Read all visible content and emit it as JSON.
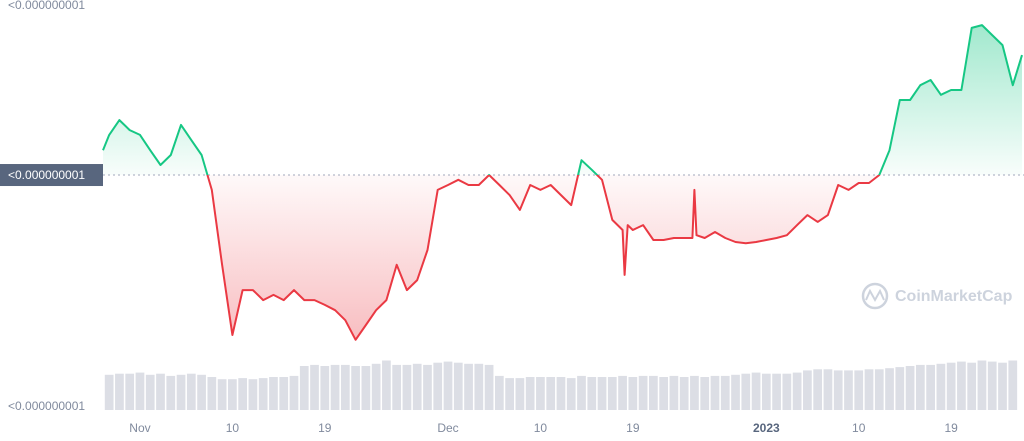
{
  "chart_data": {
    "type": "line",
    "x": [
      -3.6,
      -3,
      -2,
      -1,
      0,
      1,
      2,
      3,
      4,
      5,
      6,
      7,
      8,
      9,
      10,
      11,
      12,
      13,
      14,
      15,
      16,
      17,
      18,
      19,
      20,
      21,
      22,
      23,
      24,
      25,
      26,
      27,
      28,
      29,
      30,
      31,
      32,
      33,
      34,
      35,
      36,
      37,
      38,
      39,
      40,
      41,
      42,
      43,
      44,
      45,
      46,
      47,
      47.2,
      47.5,
      48,
      49,
      50,
      51,
      52,
      53,
      53.8,
      54,
      54.2,
      55,
      56,
      57,
      58,
      59,
      60,
      61,
      62,
      63,
      64,
      65,
      66,
      67,
      68,
      69,
      70,
      71,
      72,
      73,
      74,
      75,
      76,
      77,
      78,
      79,
      80,
      81,
      82,
      83,
      84,
      85,
      85.9
    ],
    "values": [
      63.8,
      67.6,
      71.3,
      68.8,
      67.6,
      63.8,
      60.1,
      62.6,
      70.1,
      66.3,
      62.6,
      53.9,
      35.2,
      17.7,
      28.9,
      28.9,
      26.4,
      27.7,
      26.4,
      28.9,
      26.4,
      26.4,
      25.2,
      23.9,
      21.4,
      16.5,
      20.2,
      23.9,
      26.4,
      35.2,
      28.9,
      31.4,
      38.9,
      53.9,
      55.1,
      56.4,
      55.1,
      55.1,
      57.6,
      55.1,
      52.6,
      48.9,
      55.1,
      53.9,
      55.1,
      52.6,
      50.1,
      61.3,
      58.9,
      56.4,
      46.4,
      43.9,
      32.7,
      45.1,
      43.9,
      45.1,
      41.4,
      41.4,
      41.9,
      41.9,
      41.9,
      53.9,
      42.6,
      41.9,
      43.4,
      41.9,
      40.9,
      40.6,
      40.9,
      41.4,
      41.9,
      42.6,
      45.1,
      47.6,
      45.9,
      47.6,
      55.1,
      53.9,
      55.6,
      55.6,
      57.6,
      63.8,
      76.3,
      76.3,
      80.0,
      81.3,
      77.6,
      78.8,
      78.8,
      94.3,
      95.0,
      92.5,
      90.0,
      80.0,
      87.5
    ],
    "xlim": [
      -3.6,
      85.9
    ],
    "xticks": [
      {
        "value": 0,
        "label": "Nov"
      },
      {
        "value": 9,
        "label": "10"
      },
      {
        "value": 18,
        "label": "19"
      },
      {
        "value": 30,
        "label": "Dec"
      },
      {
        "value": 39,
        "label": "10"
      },
      {
        "value": 48,
        "label": "19"
      },
      {
        "value": 61,
        "label": "2023"
      },
      {
        "value": 70,
        "label": "10"
      },
      {
        "value": 79,
        "label": "19"
      }
    ],
    "ylim": [
      0,
      100
    ],
    "yticks": [
      {
        "value": 100,
        "label": "<0.000000001"
      },
      {
        "value": 57.6,
        "label": "<0.000000001"
      },
      {
        "value": 0,
        "label": "<0.000000001"
      }
    ],
    "baseline": 57.6,
    "up_color": "#16c784",
    "down_color": "#ea3943",
    "volume": {
      "x": [
        -3,
        -2,
        -1,
        0,
        1,
        2,
        3,
        4,
        5,
        6,
        7,
        8,
        9,
        10,
        11,
        12,
        13,
        14,
        15,
        16,
        17,
        18,
        19,
        20,
        21,
        22,
        23,
        24,
        25,
        26,
        27,
        28,
        29,
        30,
        31,
        32,
        33,
        34,
        35,
        36,
        37,
        38,
        39,
        40,
        41,
        42,
        43,
        44,
        45,
        46,
        47,
        48,
        49,
        50,
        51,
        52,
        53,
        54,
        55,
        56,
        57,
        58,
        59,
        60,
        61,
        62,
        63,
        64,
        65,
        66,
        67,
        68,
        69,
        70,
        71,
        72,
        73,
        74,
        75,
        76,
        77,
        78,
        79,
        80,
        81,
        82,
        83,
        84,
        85
      ],
      "values": [
        32,
        33,
        33,
        34,
        32,
        33,
        31,
        32,
        33,
        32,
        30,
        28,
        28,
        29,
        28,
        29,
        30,
        30,
        31,
        40,
        41,
        40,
        41,
        41,
        40,
        40,
        42,
        45,
        41,
        41,
        42,
        41,
        43,
        44,
        43,
        42,
        42,
        41,
        31,
        29,
        29,
        30,
        30,
        30,
        30,
        29,
        31,
        30,
        30,
        30,
        31,
        30,
        31,
        31,
        30,
        31,
        30,
        31,
        30,
        31,
        31,
        32,
        33,
        34,
        33,
        33,
        33,
        34,
        36,
        37,
        37,
        36,
        36,
        36,
        37,
        37,
        38,
        39,
        40,
        41,
        41,
        42,
        43,
        44,
        43,
        45,
        44,
        43,
        45
      ],
      "y2lim": [
        0,
        100
      ],
      "color": "#d3d6de"
    },
    "watermark": "CoinMarketCap"
  }
}
